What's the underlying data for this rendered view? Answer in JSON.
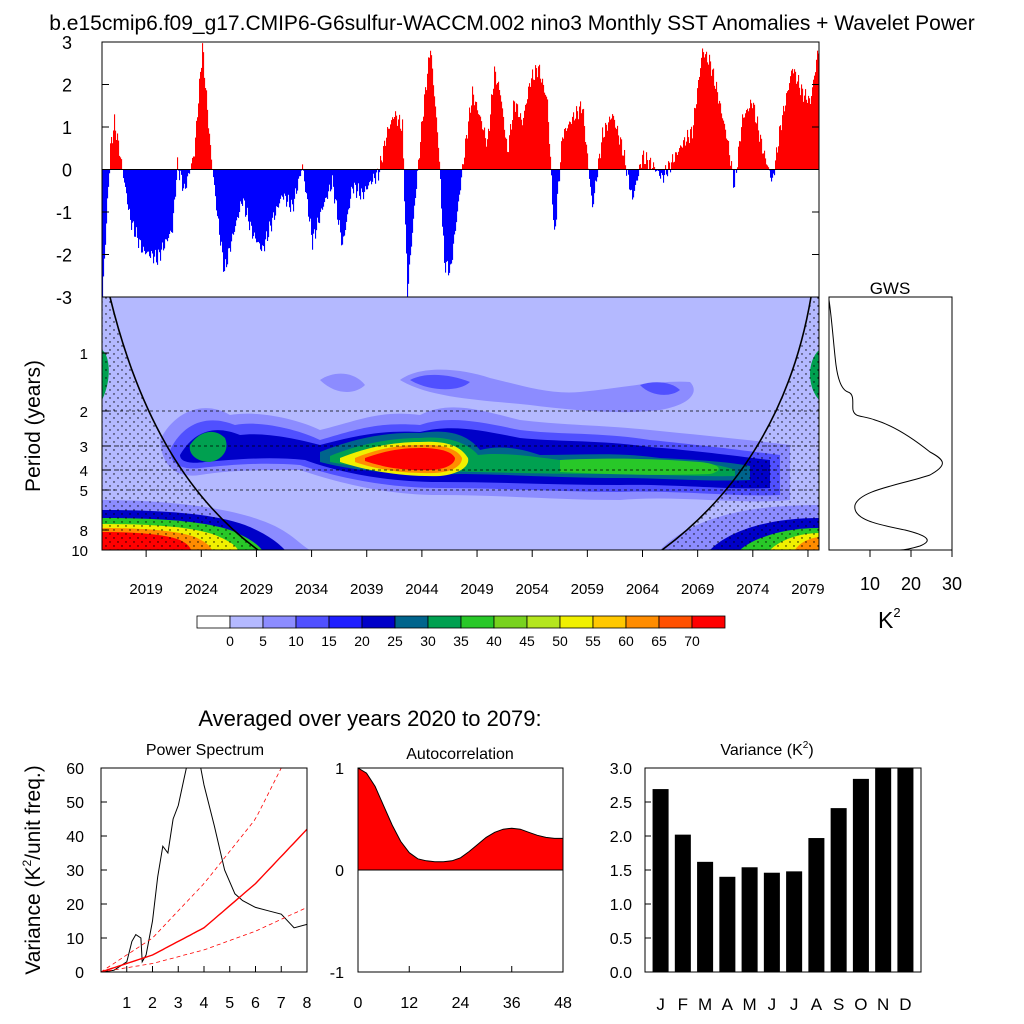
{
  "title": "b.e15cmip6.f09_g17.CMIP6-G6sulfur-WACCM.002 nino3 Monthly SST Anomalies + Wavelet Power",
  "sst_anomalies": {
    "type": "area",
    "ylim": [
      -3,
      3
    ],
    "yticks": [
      "3",
      "2",
      "1",
      "0",
      "-1",
      "-2",
      "-3"
    ],
    "positive_color": "#ff0000",
    "negative_color": "#0000ff"
  },
  "wavelet": {
    "ylabel": "Period (years)",
    "period_ticks": [
      "1",
      "2",
      "3",
      "4",
      "5",
      "8",
      "10"
    ],
    "x_ticks": [
      "2019",
      "2024",
      "2029",
      "2034",
      "2039",
      "2044",
      "2049",
      "2054",
      "2059",
      "2064",
      "2069",
      "2074",
      "2079"
    ],
    "colorbar_labels": [
      "0",
      "5",
      "10",
      "15",
      "20",
      "25",
      "30",
      "35",
      "40",
      "45",
      "50",
      "55",
      "60",
      "65",
      "70"
    ],
    "colorbar_colors": [
      "#ffffff",
      "#b4b9ff",
      "#8c8cff",
      "#5050ff",
      "#1e1eff",
      "#0000c8",
      "#00648c",
      "#00a050",
      "#28c828",
      "#78d21e",
      "#b4e61e",
      "#f0f000",
      "#ffc800",
      "#ff8c00",
      "#ff5000",
      "#ff0000"
    ]
  },
  "gws": {
    "title": "GWS",
    "x_ticks": [
      "10",
      "20",
      "30"
    ],
    "xlabel_base": "K",
    "xlabel_sup": "2"
  },
  "averaged_title": "Averaged over years 2020 to 2079:",
  "chart_data": [
    {
      "type": "line",
      "title": "Power Spectrum",
      "ylabel_parts": [
        "Variance (K",
        "2",
        "/unit freq.)"
      ],
      "ylim": [
        0,
        60
      ],
      "xlim": [
        0,
        8
      ],
      "x_ticks": [
        "1",
        "2",
        "3",
        "4",
        "5",
        "6",
        "7",
        "8"
      ],
      "y_ticks": [
        "0",
        "10",
        "20",
        "30",
        "40",
        "50",
        "60"
      ],
      "series": [
        {
          "values": [
            [
              0.0,
              0
            ],
            [
              0.5,
              0.5
            ],
            [
              1.0,
              3
            ],
            [
              1.2,
              9
            ],
            [
              1.35,
              11
            ],
            [
              1.55,
              10
            ],
            [
              1.6,
              3
            ],
            [
              1.75,
              5
            ],
            [
              2.0,
              15
            ],
            [
              2.2,
              28
            ],
            [
              2.4,
              37
            ],
            [
              2.6,
              35
            ],
            [
              2.8,
              45
            ],
            [
              3.0,
              49
            ],
            [
              3.2,
              56
            ],
            [
              3.4,
              63
            ],
            [
              3.6,
              65
            ],
            [
              3.8,
              63
            ],
            [
              4.0,
              55
            ],
            [
              4.4,
              43
            ],
            [
              4.8,
              30
            ],
            [
              5.2,
              23
            ],
            [
              5.5,
              21
            ],
            [
              6.0,
              19
            ],
            [
              6.5,
              18
            ],
            [
              7.0,
              17
            ],
            [
              7.5,
              13
            ],
            [
              8.0,
              14
            ]
          ]
        },
        {
          "values": [
            [
              0,
              0
            ],
            [
              2,
              5
            ],
            [
              4,
              13
            ],
            [
              6,
              26
            ],
            [
              8,
              42
            ]
          ]
        },
        {
          "values": [
            [
              0,
              0
            ],
            [
              2,
              10
            ],
            [
              4,
              26
            ],
            [
              6,
              45
            ],
            [
              7,
              60
            ]
          ]
        },
        {
          "values": [
            [
              0,
              0
            ],
            [
              2,
              2.5
            ],
            [
              4,
              6.5
            ],
            [
              6,
              12
            ],
            [
              8,
              19
            ]
          ]
        }
      ]
    },
    {
      "type": "area",
      "title": "Autocorrelation",
      "ylim": [
        -1,
        1
      ],
      "xlim": [
        0,
        48
      ],
      "x_ticks": [
        "0",
        "12",
        "24",
        "36",
        "48"
      ],
      "y_ticks": [
        "1",
        "0",
        "-1"
      ],
      "lag": [
        0,
        2,
        4,
        6,
        8,
        10,
        12,
        14,
        16,
        18,
        20,
        22,
        24,
        26,
        28,
        30,
        32,
        34,
        36,
        38,
        40,
        42,
        44,
        46,
        48
      ],
      "values": [
        1.0,
        0.95,
        0.82,
        0.63,
        0.44,
        0.28,
        0.17,
        0.11,
        0.09,
        0.08,
        0.08,
        0.09,
        0.12,
        0.18,
        0.25,
        0.32,
        0.37,
        0.4,
        0.41,
        0.4,
        0.37,
        0.34,
        0.32,
        0.31,
        0.31
      ]
    },
    {
      "type": "bar",
      "title_base": "Variance (K",
      "title_sup": "2",
      "title_end": ")",
      "categories": [
        "J",
        "F",
        "M",
        "A",
        "M",
        "J",
        "J",
        "A",
        "S",
        "O",
        "N",
        "D"
      ],
      "values": [
        2.69,
        2.02,
        1.62,
        1.4,
        1.54,
        1.46,
        1.48,
        1.97,
        2.41,
        2.84,
        3.0,
        3.0
      ],
      "ylim": [
        0,
        3
      ],
      "y_ticks": [
        "3.0",
        "2.5",
        "2.0",
        "1.5",
        "1.0",
        "0.5",
        "0.0"
      ]
    }
  ]
}
